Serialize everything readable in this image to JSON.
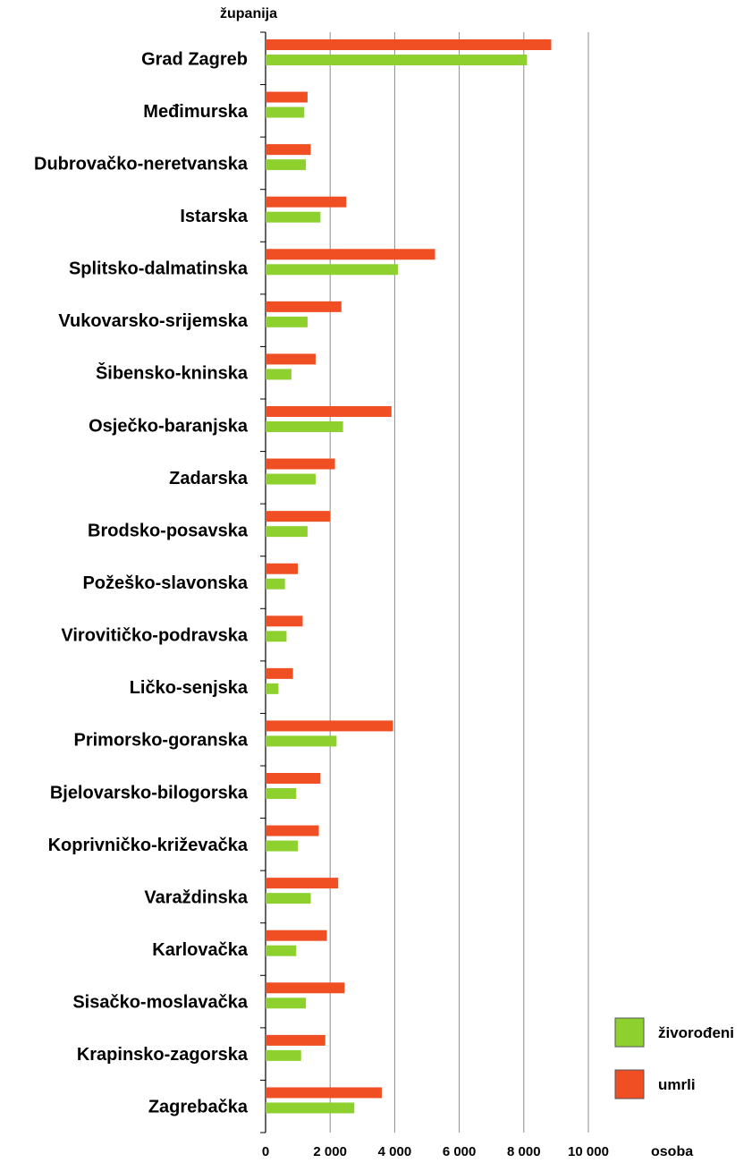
{
  "chart_data": {
    "type": "bar",
    "orientation": "horizontal",
    "title": "",
    "ylabel": "županija",
    "xlabel": "osoba",
    "xlim": [
      0,
      10000
    ],
    "xticks": [
      0,
      2000,
      4000,
      6000,
      8000,
      10000
    ],
    "xtick_labels": [
      "0",
      "2 000",
      "4 000",
      "6 000",
      "8 000",
      "10 000"
    ],
    "grid": true,
    "legend_position": "bottom-right",
    "categories": [
      "Grad Zagreb",
      "Međimurska",
      "Dubrovačko-neretvanska",
      "Istarska",
      "Splitsko-dalmatinska",
      "Vukovarsko-srijemska",
      "Šibensko-kninska",
      "Osječko-baranjska",
      "Zadarska",
      "Brodsko-posavska",
      "Požeško-slavonska",
      "Virovitičko-podravska",
      "Ličko-senjska",
      "Primorsko-goranska",
      "Bjelovarsko-bilogorska",
      "Koprivničko-križevačka",
      "Varaždinska",
      "Karlovačka",
      "Sisačko-moslavačka",
      "Krapinsko-zagorska",
      "Zagrebačka"
    ],
    "series": [
      {
        "name": "umrli",
        "color": "#f04e23",
        "values": [
          8850,
          1300,
          1400,
          2500,
          5250,
          2350,
          1550,
          3900,
          2150,
          2000,
          1000,
          1150,
          850,
          3950,
          1700,
          1650,
          2250,
          1900,
          2450,
          1850,
          3600
        ]
      },
      {
        "name": "živorođeni",
        "color": "#8ed12e",
        "values": [
          8100,
          1200,
          1250,
          1700,
          4100,
          1300,
          800,
          2400,
          1550,
          1300,
          600,
          650,
          400,
          2200,
          950,
          1000,
          1400,
          950,
          1250,
          1100,
          2750
        ]
      }
    ],
    "legend": [
      {
        "name": "živorođeni",
        "color": "#8ed12e"
      },
      {
        "name": "umrli",
        "color": "#f04e23"
      }
    ]
  }
}
